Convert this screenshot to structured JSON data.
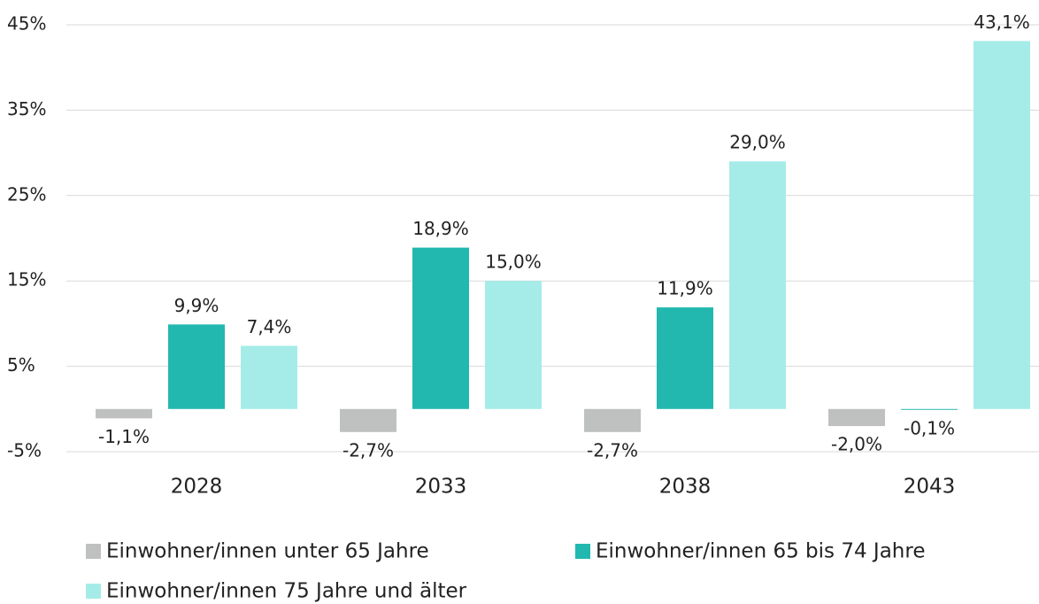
{
  "chart_data": {
    "type": "bar",
    "categories": [
      "2028",
      "2033",
      "2038",
      "2043"
    ],
    "series": [
      {
        "name": "Einwohner/innen unter 65 Jahre",
        "color": "#bfc1c1",
        "values": [
          -1.1,
          -2.7,
          -2.7,
          -2.0
        ],
        "value_labels": [
          "-1,1%",
          "-2,7%",
          "-2,7%",
          "-2,0%"
        ]
      },
      {
        "name": "Einwohner/innen 65 bis 74 Jahre",
        "color": "#22b8b0",
        "values": [
          9.9,
          18.9,
          11.9,
          -0.1
        ],
        "value_labels": [
          "9,9%",
          "18,9%",
          "11,9%",
          "-0,1%"
        ]
      },
      {
        "name": "Einwohner/innen 75 Jahre und älter",
        "color": "#a5ece8",
        "values": [
          7.4,
          15.0,
          29.0,
          43.1
        ],
        "value_labels": [
          "7,4%",
          "15,0%",
          "29,0%",
          "43,1%"
        ]
      }
    ],
    "ylim": [
      -5,
      45
    ],
    "yticks": [
      {
        "value": -5,
        "label": "-5%"
      },
      {
        "value": 5,
        "label": "5%"
      },
      {
        "value": 15,
        "label": "15%"
      },
      {
        "value": 25,
        "label": "25%"
      },
      {
        "value": 35,
        "label": "35%"
      },
      {
        "value": 45,
        "label": "45%"
      }
    ],
    "grid": true,
    "legend": "bottom"
  }
}
